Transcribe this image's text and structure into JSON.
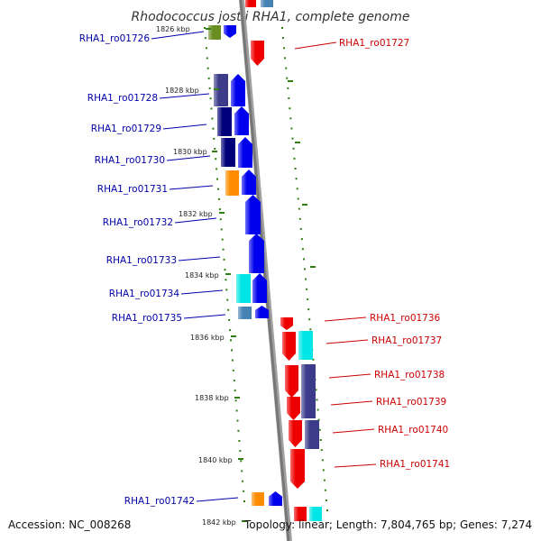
{
  "title": "Rhodococcus jostii RHA1, complete genome",
  "footer": {
    "accession": "Accession: NC_008268",
    "info": "Topology: linear; Length: 7,804,765 bp; Genes: 7,274"
  },
  "colors": {
    "left_label": "#0000aa",
    "right_label": "#cc0000",
    "dots": "#2e7d0f",
    "blue": "#0000ee",
    "navy": "#00007a",
    "slate": "#3b3b8a",
    "orange": "#ff8c00",
    "cyan": "#00e5e5",
    "steel": "#4682b4",
    "red": "#ee0000",
    "olive": "#6b8e23"
  },
  "ticks": [
    "1826 kbp",
    "1828 kbp",
    "1830 kbp",
    "1832 kbp",
    "1834 kbp",
    "1836 kbp",
    "1838 kbp",
    "1840 kbp",
    "1842 kbp"
  ],
  "genes_left": [
    "RHA1_ro01726",
    "RHA1_ro01728",
    "RHA1_ro01729",
    "RHA1_ro01730",
    "RHA1_ro01731",
    "RHA1_ro01732",
    "RHA1_ro01733",
    "RHA1_ro01734",
    "RHA1_ro01735",
    "RHA1_ro01742"
  ],
  "genes_right": [
    "RHA1_ro01727",
    "RHA1_ro01736",
    "RHA1_ro01737",
    "RHA1_ro01738",
    "RHA1_ro01739",
    "RHA1_ro01740",
    "RHA1_ro01741"
  ]
}
